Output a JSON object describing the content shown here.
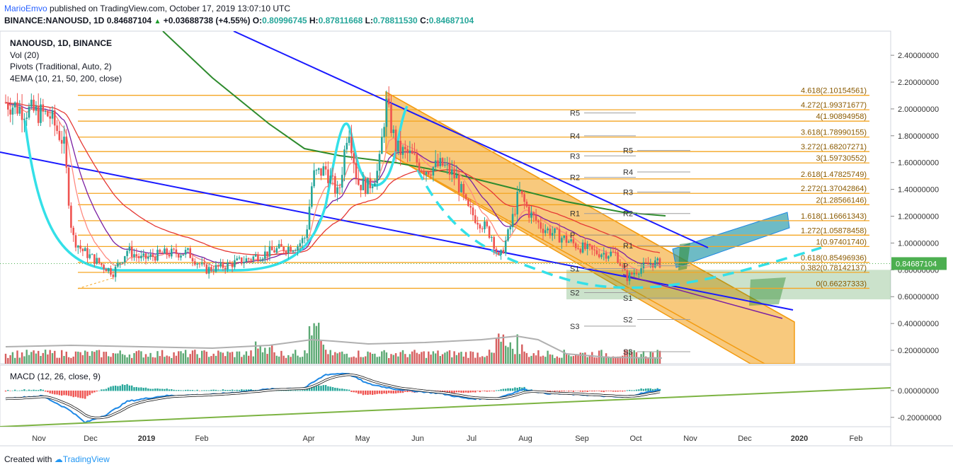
{
  "header": {
    "author": "MarioEmvo",
    "published_text": "published on TradingView.com, October 17, 2019 13:07:10 UTC",
    "symbol": "BINANCE:NANOUSD, 1D",
    "last": "0.84687104",
    "arrow": "▲",
    "change": "+0.03688738 (+4.55%)",
    "o_label": "O:",
    "o_value": "0.80996745",
    "h_label": "H:",
    "h_value": "0.87811668",
    "l_label": "L:",
    "l_value": "0.78811530",
    "c_label": "C:",
    "c_value": "0.84687104"
  },
  "legend": {
    "title": "NANOUSD, 1D, BINANCE",
    "vol": "Vol (20)",
    "pivots": "Pivots (Traditional, Auto, 2)",
    "ema": "4EMA (10, 21, 50, 200, close)",
    "macd": "MACD (12, 26, close, 9)"
  },
  "footer": {
    "created_with": "Created with",
    "brand": "TradingView"
  },
  "colors": {
    "fib": "#f5a623",
    "channel": "#f39c12",
    "downtrend": "#1a1aff",
    "ema200": "#2e8b2e",
    "ema50": "#e53935",
    "ema_other": "#7b1fa2",
    "cyan": "#34e0e8",
    "up_candle": "#26a69a",
    "down_candle": "#ef5350",
    "price_tag": "#4caf50",
    "macd_line": "#1e88e5",
    "signal_line": "#ffffff",
    "macd_trend": "#7cb342"
  },
  "chart_data": {
    "type": "candlestick",
    "price_axis": {
      "range": [
        0.1,
        2.58
      ],
      "ticks": [
        "2.40000000",
        "2.20000000",
        "2.00000000",
        "1.80000000",
        "1.60000000",
        "1.40000000",
        "1.20000000",
        "1.00000000",
        "0.80000000",
        "0.60000000",
        "0.40000000",
        "0.20000000"
      ],
      "last_price_tag": "0.84687104",
      "last_price": 0.84687104
    },
    "macd_axis": {
      "range": [
        -0.27,
        0.19
      ],
      "ticks": [
        "0.00000000",
        "-0.20000000"
      ]
    },
    "time_axis": {
      "labels": [
        "Nov",
        "Dec",
        "2019",
        "Feb",
        "Apr",
        "May",
        "Jun",
        "Jul",
        "Aug",
        "Sep",
        "Oct",
        "Nov",
        "Dec",
        "2020",
        "Feb"
      ],
      "bold": [
        "2019",
        "2020"
      ]
    },
    "fib_levels": [
      {
        "ratio": "4.618",
        "value": 2.10154561,
        "label": "4.618(2.10154561)"
      },
      {
        "ratio": "4.272",
        "value": 1.99371677,
        "label": "4.272(1.99371677)"
      },
      {
        "ratio": "4",
        "value": 1.90894958,
        "label": "4(1.90894958)"
      },
      {
        "ratio": "3.618",
        "value": 1.78990155,
        "label": "3.618(1.78990155)"
      },
      {
        "ratio": "3.272",
        "value": 1.68207271,
        "label": "3.272(1.68207271)"
      },
      {
        "ratio": "3",
        "value": 1.59730552,
        "label": "3(1.59730552)"
      },
      {
        "ratio": "2.618",
        "value": 1.47825749,
        "label": "2.618(1.47825749)"
      },
      {
        "ratio": "2.272",
        "value": 1.37042864,
        "label": "2.272(1.37042864)"
      },
      {
        "ratio": "2",
        "value": 1.28566146,
        "label": "2(1.28566146)"
      },
      {
        "ratio": "1.618",
        "value": 1.16661343,
        "label": "1.618(1.16661343)"
      },
      {
        "ratio": "1.272",
        "value": 1.05878458,
        "label": "1.272(1.05878458)"
      },
      {
        "ratio": "1",
        "value": 0.9740174,
        "label": "1(0.97401740)"
      },
      {
        "ratio": "0.618",
        "value": 0.85496936,
        "label": "0.618(0.85496936)"
      },
      {
        "ratio": "0.382",
        "value": 0.78142137,
        "label": "0.382(0.78142137)"
      },
      {
        "ratio": "0",
        "value": 0.66237333,
        "label": "0(0.66237333)"
      }
    ],
    "pivots": [
      {
        "set": "Aug",
        "label": "R5",
        "value": 1.97
      },
      {
        "set": "Aug",
        "label": "R4",
        "value": 1.8
      },
      {
        "set": "Aug",
        "label": "R3",
        "value": 1.65
      },
      {
        "set": "Aug",
        "label": "R2",
        "value": 1.49
      },
      {
        "set": "Aug",
        "label": "R1",
        "value": 1.22
      },
      {
        "set": "Aug",
        "label": "P",
        "value": 1.06
      },
      {
        "set": "Aug",
        "label": "S1",
        "value": 0.81
      },
      {
        "set": "Aug",
        "label": "S2",
        "value": 0.63
      },
      {
        "set": "Aug",
        "label": "S3",
        "value": 0.38
      },
      {
        "set": "Oct",
        "label": "R5",
        "value": 1.69
      },
      {
        "set": "Oct",
        "label": "R4",
        "value": 1.53
      },
      {
        "set": "Oct",
        "label": "R3",
        "value": 1.38
      },
      {
        "set": "Oct",
        "label": "R2",
        "value": 1.22
      },
      {
        "set": "Oct",
        "label": "R1",
        "value": 0.98
      },
      {
        "set": "Oct",
        "label": "P",
        "value": 0.83
      },
      {
        "set": "Oct",
        "label": "S1",
        "value": 0.59
      },
      {
        "set": "Oct",
        "label": "S2",
        "value": 0.43
      },
      {
        "set": "Oct",
        "label": "S3",
        "value": 0.19
      }
    ],
    "price_series_note": "daily closes approximated by month",
    "monthly_path": [
      {
        "month": "Nov",
        "price": 2.05
      },
      {
        "month": "Dec",
        "price": 0.82
      },
      {
        "month": "2019",
        "price": 0.92
      },
      {
        "month": "Feb",
        "price": 0.8
      },
      {
        "month": "Apr",
        "price": 1.55
      },
      {
        "month": "May",
        "price": 1.45
      },
      {
        "month": "Jun",
        "price": 1.6
      },
      {
        "month": "Jul",
        "price": 1.05
      },
      {
        "month": "Aug",
        "price": 1.22
      },
      {
        "month": "Sep",
        "price": 0.93
      },
      {
        "month": "Oct",
        "price": 0.85
      }
    ]
  }
}
